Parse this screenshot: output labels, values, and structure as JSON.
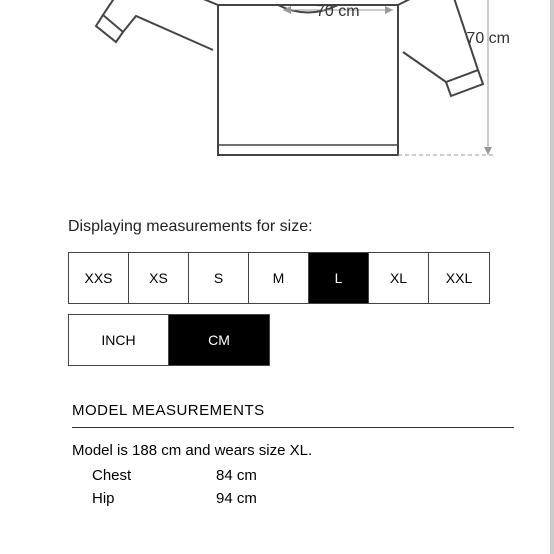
{
  "diagram": {
    "width_label": "70 cm",
    "height_label": "70 cm",
    "stroke": "#444444",
    "arrow": "#888888"
  },
  "sizes": {
    "heading": "Displaying measurements for size:",
    "options": [
      "XXS",
      "XS",
      "S",
      "M",
      "L",
      "XL",
      "XXL"
    ],
    "selected": "L"
  },
  "units": {
    "options": [
      "INCH",
      "CM"
    ],
    "selected": "CM"
  },
  "model": {
    "heading": "MODEL MEASUREMENTS",
    "description": "Model is 188 cm and wears size XL.",
    "rows": [
      {
        "label": "Chest",
        "value": "84 cm"
      },
      {
        "label": "Hip",
        "value": "94 cm"
      }
    ]
  }
}
